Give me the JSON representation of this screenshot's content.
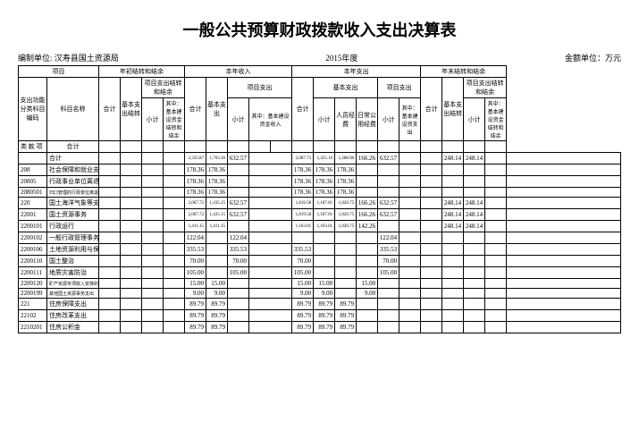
{
  "title": "一般公共预算财政拨款收入支出决算表",
  "meta": {
    "org_label": "编制单位: 汉寿县国土资源局",
    "year_label": "2015年度",
    "unit_label": "金额单位：万元"
  },
  "headers": {
    "proj": "项目",
    "begin_bal": "年初结转和结余",
    "cur_income": "本年收入",
    "cur_expense": "本年支出",
    "end_bal": "年末结转和结余",
    "proj_exp_bal": "项目支出结转和结余",
    "basic_exp": "基本支出",
    "proj_exp": "项目支出",
    "func_code": "支出功能分类科目编码",
    "subj_name": "科目名称",
    "heji": "合计",
    "basic_exp_bal": "基本支出结转",
    "xiaoji": "小计",
    "of_which_cap": "其中：基本建设资金结转和结余",
    "of_which_cap_income": "其中：基本建设资金收入",
    "of_which_cap_exp": "其中：基本建设资支出",
    "renyuan": "人员经费",
    "richang": "日常公用经费",
    "lei": "类",
    "kuan": "款",
    "xiang": "项"
  },
  "rows": [
    {
      "code": "",
      "name": "合计",
      "v": [
        "",
        "",
        "",
        "",
        "2,335.87",
        "1,703.30",
        "632.57",
        "",
        "",
        "2,087.73",
        "1,455.16",
        "1,288.90",
        "166.26",
        "632.57",
        "",
        "",
        "248.14",
        "248.14",
        "",
        ""
      ]
    },
    {
      "code": "208",
      "name": "社会保障和就业支出",
      "v": [
        "",
        "",
        "",
        "",
        "178.36",
        "178.36",
        "",
        "",
        "",
        "178.36",
        "178.36",
        "178.36",
        "",
        "",
        "",
        "",
        "",
        "",
        "",
        ""
      ]
    },
    {
      "code": "20805",
      "name": "行政事业单位离退休",
      "v": [
        "",
        "",
        "",
        "",
        "178.36",
        "178.36",
        "",
        "",
        "",
        "178.36",
        "178.36",
        "178.36",
        "",
        "",
        "",
        "",
        "",
        "",
        "",
        ""
      ]
    },
    {
      "code": "2080501",
      "name": "归口管理的行政单位离退休",
      "v": [
        "",
        "",
        "",
        "",
        "178.36",
        "178.36",
        "",
        "",
        "",
        "178.36",
        "178.36",
        "178.36",
        "",
        "",
        "",
        "",
        "",
        "",
        "",
        ""
      ]
    },
    {
      "code": "220",
      "name": "国土海洋气象等支出",
      "v": [
        "",
        "",
        "",
        "",
        "2,067.72",
        "1,435.15",
        "632.57",
        "",
        "",
        "1,819.58",
        "1,187.01",
        "1,020.75",
        "166.26",
        "632.57",
        "",
        "",
        "248.14",
        "248.14",
        "",
        ""
      ]
    },
    {
      "code": "22001",
      "name": "国土资源事务",
      "v": [
        "",
        "",
        "",
        "",
        "2,067.72",
        "1,435.15",
        "632.57",
        "",
        "",
        "1,819.58",
        "1,187.01",
        "1,020.75",
        "166.26",
        "632.57",
        "",
        "",
        "248.14",
        "248.14",
        "",
        ""
      ]
    },
    {
      "code": "2200101",
      "name": "行政运行",
      "v": [
        "",
        "",
        "",
        "",
        "1,411.15",
        "1,411.15",
        "",
        "",
        "",
        "1,163.01",
        "1,163.01",
        "1,020.75",
        "142.26",
        "",
        "",
        "",
        "248.14",
        "248.14",
        "",
        ""
      ]
    },
    {
      "code": "2200102",
      "name": "一般行政管理事务",
      "v": [
        "",
        "",
        "",
        "",
        "122.04",
        "",
        "122.04",
        "",
        "",
        "",
        "",
        "",
        "",
        "122.04",
        "",
        "",
        "",
        "",
        "",
        ""
      ]
    },
    {
      "code": "2200106",
      "name": "土地资源利用与保护",
      "v": [
        "",
        "",
        "",
        "",
        "335.53",
        "",
        "335.53",
        "",
        "",
        "335.53",
        "",
        "",
        "",
        "335.53",
        "",
        "",
        "",
        "",
        "",
        ""
      ]
    },
    {
      "code": "2200110",
      "name": "国土整治",
      "v": [
        "",
        "",
        "",
        "",
        "70.00",
        "",
        "70.00",
        "",
        "",
        "70.00",
        "",
        "",
        "",
        "70.00",
        "",
        "",
        "",
        "",
        "",
        ""
      ]
    },
    {
      "code": "2200111",
      "name": "地质灾害防治",
      "v": [
        "",
        "",
        "",
        "",
        "105.00",
        "",
        "105.00",
        "",
        "",
        "105.00",
        "",
        "",
        "",
        "105.00",
        "",
        "",
        "",
        "",
        "",
        ""
      ]
    },
    {
      "code": "2200120",
      "name": "矿产资源专项收入安排的支出",
      "v": [
        "",
        "",
        "",
        "",
        "15.00",
        "15.00",
        "",
        "",
        "",
        "15.00",
        "15.00",
        "",
        "15.00",
        "",
        "",
        "",
        "",
        "",
        "",
        ""
      ]
    },
    {
      "code": "2200199",
      "name": "其他国土资源事务支出",
      "v": [
        "",
        "",
        "",
        "",
        "9.00",
        "9.00",
        "",
        "",
        "",
        "9.00",
        "9.00",
        "",
        "9.00",
        "",
        "",
        "",
        "",
        "",
        "",
        ""
      ]
    },
    {
      "code": "221",
      "name": "住房保障支出",
      "v": [
        "",
        "",
        "",
        "",
        "89.79",
        "89.79",
        "",
        "",
        "",
        "89.79",
        "89.79",
        "89.79",
        "",
        "",
        "",
        "",
        "",
        "",
        "",
        ""
      ]
    },
    {
      "code": "22102",
      "name": "住房改革支出",
      "v": [
        "",
        "",
        "",
        "",
        "89.79",
        "89.79",
        "",
        "",
        "",
        "89.79",
        "89.79",
        "89.79",
        "",
        "",
        "",
        "",
        "",
        "",
        "",
        ""
      ]
    },
    {
      "code": "2210201",
      "name": "住房公积金",
      "v": [
        "",
        "",
        "",
        "",
        "89.79",
        "89.79",
        "",
        "",
        "",
        "89.79",
        "89.79",
        "89.79",
        "",
        "",
        "",
        "",
        "",
        "",
        "",
        ""
      ]
    }
  ]
}
